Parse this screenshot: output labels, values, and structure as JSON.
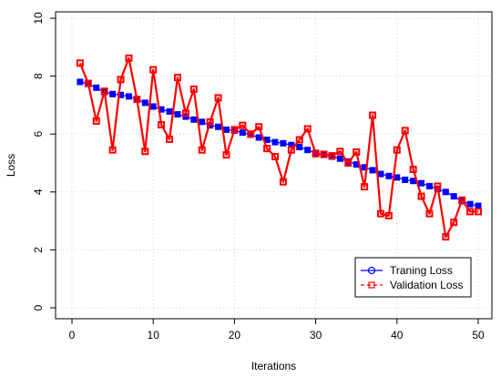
{
  "chart_data": {
    "type": "line",
    "title": "",
    "xlabel": "Iterations",
    "ylabel": "Loss",
    "xlim": [
      0,
      52
    ],
    "ylim": [
      0,
      10
    ],
    "x_ticks": [
      0,
      10,
      20,
      30,
      40,
      50
    ],
    "y_ticks": [
      0,
      2,
      4,
      6,
      8,
      10
    ],
    "grid": true,
    "legend_position": "bottom-right",
    "series": [
      {
        "name": "Traning Loss",
        "color": "#0000ff",
        "marker": "circle",
        "line_style": "solid",
        "x": [
          1,
          2,
          3,
          4,
          5,
          6,
          7,
          8,
          9,
          10,
          11,
          12,
          13,
          14,
          15,
          16,
          17,
          18,
          19,
          20,
          21,
          22,
          23,
          24,
          25,
          26,
          27,
          28,
          29,
          30,
          31,
          32,
          33,
          34,
          35,
          36,
          37,
          38,
          39,
          40,
          41,
          42,
          43,
          44,
          45,
          46,
          47,
          48,
          49,
          50
        ],
        "values": [
          7.8,
          7.73,
          7.6,
          7.45,
          7.38,
          7.35,
          7.3,
          7.2,
          7.08,
          6.95,
          6.85,
          6.78,
          6.68,
          6.6,
          6.5,
          6.42,
          6.3,
          6.25,
          6.15,
          6.12,
          6.05,
          5.98,
          5.88,
          5.8,
          5.72,
          5.68,
          5.62,
          5.55,
          5.45,
          5.35,
          5.28,
          5.22,
          5.15,
          5.05,
          4.95,
          4.85,
          4.75,
          4.62,
          4.55,
          4.5,
          4.42,
          4.38,
          4.3,
          4.2,
          4.1,
          4.0,
          3.85,
          3.68,
          3.58,
          3.52
        ]
      },
      {
        "name": "Validation Loss",
        "color": "#ff0000",
        "marker": "square",
        "line_style": "dashed",
        "x": [
          1,
          2,
          3,
          4,
          5,
          6,
          7,
          8,
          9,
          10,
          11,
          12,
          13,
          14,
          15,
          16,
          17,
          18,
          19,
          20,
          21,
          22,
          23,
          24,
          25,
          26,
          27,
          28,
          29,
          30,
          31,
          32,
          33,
          34,
          35,
          36,
          37,
          38,
          39,
          40,
          41,
          42,
          43,
          44,
          45,
          46,
          47,
          48,
          49,
          50
        ],
        "values": [
          8.45,
          7.75,
          6.45,
          7.48,
          5.45,
          7.88,
          8.62,
          7.2,
          5.4,
          8.22,
          6.32,
          5.82,
          7.95,
          6.72,
          7.55,
          5.45,
          6.42,
          7.25,
          5.28,
          6.15,
          6.3,
          6.0,
          6.25,
          5.5,
          5.22,
          4.35,
          5.45,
          5.8,
          6.18,
          5.32,
          5.3,
          5.25,
          5.4,
          5.0,
          5.38,
          4.18,
          6.65,
          3.25,
          3.18,
          5.45,
          6.12,
          4.78,
          3.85,
          3.25,
          4.2,
          2.45,
          2.95,
          3.72,
          3.32,
          3.32
        ]
      }
    ]
  }
}
